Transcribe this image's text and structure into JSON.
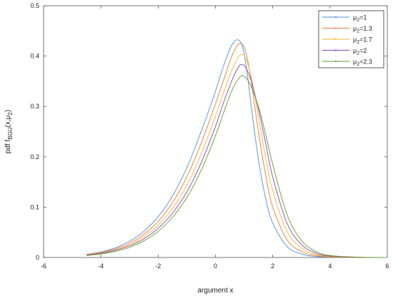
{
  "chart_data": {
    "type": "line",
    "title": "",
    "xlabel": "argument x",
    "ylabel": {
      "prefix": "pdf f",
      "sub": "BGU",
      "paren_open": "(x,μ",
      "paren_sub": "2",
      "paren_close": ")"
    },
    "xlim": [
      -6,
      6
    ],
    "ylim": [
      0,
      0.5
    ],
    "xticks": [
      "-6",
      "-4",
      "-2",
      "0",
      "2",
      "4",
      "6"
    ],
    "yticks": [
      "0",
      "0.1",
      "0.2",
      "0.3",
      "0.4",
      "0.5"
    ],
    "grid": false,
    "legend_position": "top-right",
    "series": [
      {
        "name": {
          "base": "μ",
          "sub": "2",
          "rest": "=1"
        },
        "color": "#4a90d9",
        "x": [
          -4.5,
          -4.0,
          -3.5,
          -3.0,
          -2.5,
          -2.0,
          -1.5,
          -1.0,
          -0.5,
          0.0,
          0.25,
          0.5,
          0.65,
          0.8,
          0.95,
          1.1,
          1.25,
          1.5,
          1.75,
          2.0,
          2.5,
          3.0,
          3.5,
          4.0,
          5.0,
          6.0
        ],
        "y": [
          0.006,
          0.011,
          0.019,
          0.032,
          0.052,
          0.081,
          0.122,
          0.178,
          0.25,
          0.33,
          0.375,
          0.413,
          0.428,
          0.432,
          0.418,
          0.37,
          0.3,
          0.195,
          0.118,
          0.068,
          0.022,
          0.007,
          0.002,
          0.0006,
          0.0001,
          0.0
        ]
      },
      {
        "name": {
          "base": "μ",
          "sub": "2",
          "rest": "=1.3"
        },
        "color": "#e8793a",
        "x": [
          -4.5,
          -4.0,
          -3.5,
          -3.0,
          -2.5,
          -2.0,
          -1.5,
          -1.0,
          -0.5,
          0.0,
          0.3,
          0.55,
          0.75,
          0.85,
          1.0,
          1.15,
          1.3,
          1.5,
          1.75,
          2.0,
          2.5,
          3.0,
          3.5,
          4.0,
          5.0,
          6.0
        ],
        "y": [
          0.006,
          0.01,
          0.017,
          0.028,
          0.046,
          0.072,
          0.109,
          0.16,
          0.227,
          0.305,
          0.355,
          0.397,
          0.42,
          0.425,
          0.418,
          0.385,
          0.33,
          0.25,
          0.165,
          0.1,
          0.035,
          0.012,
          0.004,
          0.0012,
          0.0002,
          0.0
        ]
      },
      {
        "name": {
          "base": "μ",
          "sub": "2",
          "rest": "=1.7"
        },
        "color": "#f0b82e",
        "x": [
          -4.5,
          -4.0,
          -3.5,
          -3.0,
          -2.5,
          -2.0,
          -1.5,
          -1.0,
          -0.5,
          0.0,
          0.3,
          0.6,
          0.8,
          0.95,
          1.1,
          1.3,
          1.5,
          1.75,
          2.0,
          2.5,
          3.0,
          3.5,
          4.0,
          5.0,
          6.0
        ],
        "y": [
          0.005,
          0.009,
          0.015,
          0.025,
          0.041,
          0.064,
          0.097,
          0.143,
          0.205,
          0.28,
          0.33,
          0.376,
          0.398,
          0.403,
          0.39,
          0.345,
          0.28,
          0.2,
          0.133,
          0.052,
          0.019,
          0.006,
          0.002,
          0.0003,
          0.0
        ]
      },
      {
        "name": {
          "base": "μ",
          "sub": "2",
          "rest": "=2"
        },
        "color": "#8e44ad",
        "x": [
          -4.5,
          -4.0,
          -3.5,
          -3.0,
          -2.5,
          -2.0,
          -1.5,
          -1.0,
          -0.5,
          0.0,
          0.3,
          0.6,
          0.8,
          0.9,
          1.05,
          1.25,
          1.5,
          1.75,
          2.0,
          2.5,
          3.0,
          3.5,
          4.0,
          5.0,
          6.0
        ],
        "y": [
          0.005,
          0.008,
          0.014,
          0.023,
          0.037,
          0.058,
          0.088,
          0.13,
          0.188,
          0.26,
          0.31,
          0.355,
          0.378,
          0.383,
          0.378,
          0.35,
          0.295,
          0.228,
          0.16,
          0.068,
          0.026,
          0.009,
          0.003,
          0.0005,
          0.0
        ]
      },
      {
        "name": {
          "base": "μ",
          "sub": "2",
          "rest": "=2.3"
        },
        "color": "#5aa02c",
        "x": [
          -4.5,
          -4.0,
          -3.5,
          -3.0,
          -2.5,
          -2.0,
          -1.5,
          -1.0,
          -0.5,
          0.0,
          0.3,
          0.6,
          0.85,
          1.0,
          1.2,
          1.5,
          1.75,
          2.0,
          2.5,
          3.0,
          3.5,
          4.0,
          5.0,
          6.0
        ],
        "y": [
          0.004,
          0.007,
          0.012,
          0.02,
          0.033,
          0.052,
          0.08,
          0.119,
          0.173,
          0.242,
          0.29,
          0.335,
          0.358,
          0.36,
          0.345,
          0.3,
          0.245,
          0.185,
          0.085,
          0.034,
          0.012,
          0.004,
          0.0007,
          0.0
        ]
      }
    ]
  }
}
